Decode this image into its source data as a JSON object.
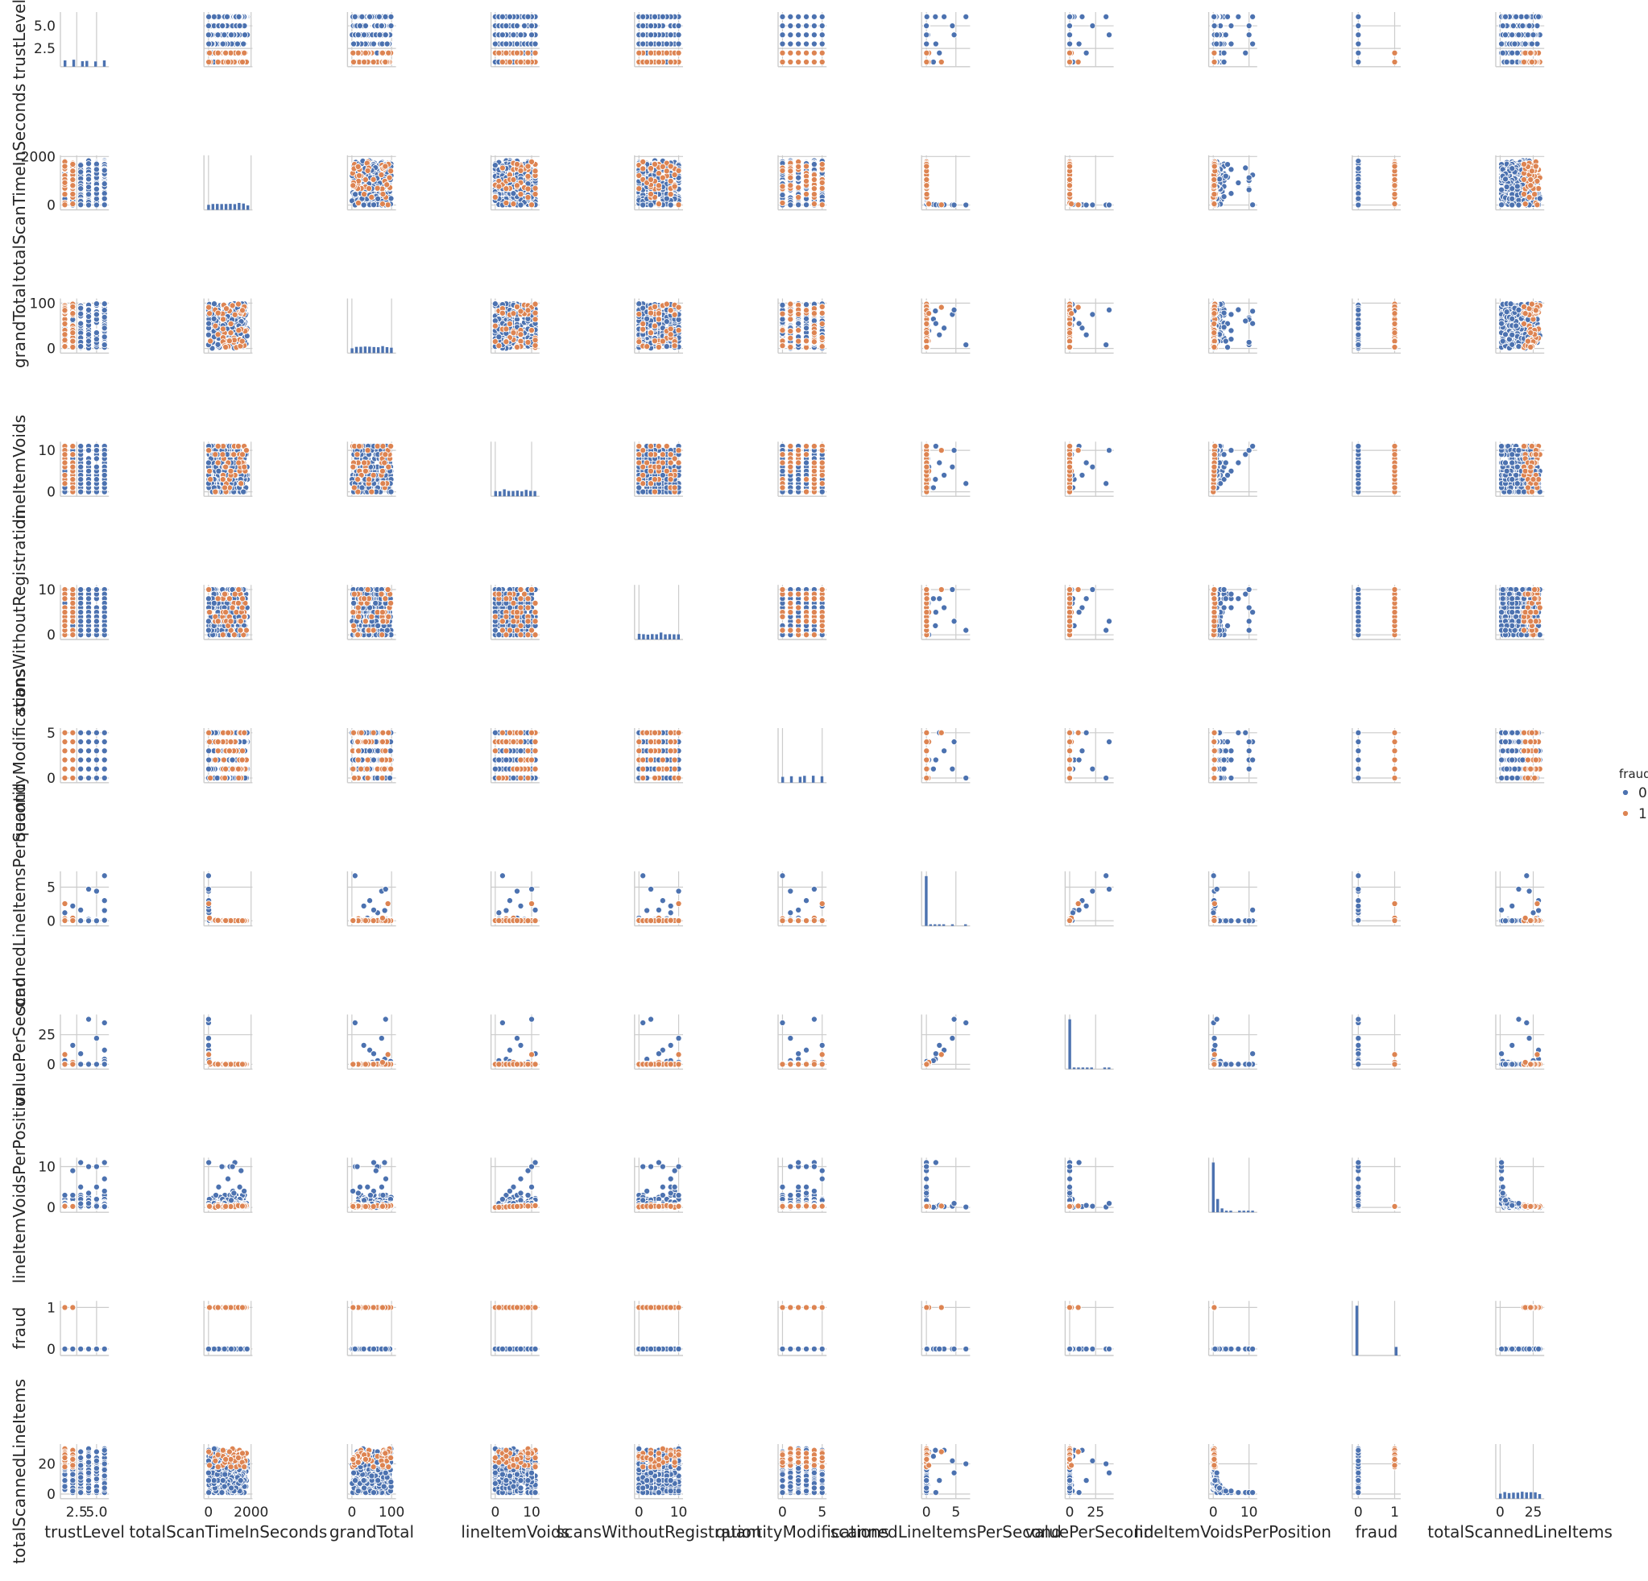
{
  "chart_data": {
    "type": "scatter",
    "subtype": "pairplot",
    "variables": [
      "trustLevel",
      "totalScanTimeInSeconds",
      "grandTotal",
      "lineItemVoids",
      "scansWithoutRegistration",
      "quantityModifications",
      "scannedLineItemsPerSecond",
      "valuePerSecond",
      "lineItemVoidsPerPosition",
      "fraud",
      "totalScannedLineItems"
    ],
    "ranges": {
      "trustLevel": [
        0.75,
        6.25
      ],
      "totalScanTimeInSeconds": [
        -100,
        1950
      ],
      "grandTotal": [
        -5,
        105
      ],
      "lineItemVoids": [
        -0.5,
        11.5
      ],
      "scansWithoutRegistration": [
        -0.5,
        10.5
      ],
      "quantityModifications": [
        -0.25,
        5.25
      ],
      "scannedLineItemsPerSecond": [
        -0.4,
        7
      ],
      "valuePerSecond": [
        -2,
        40
      ],
      "lineItemVoidsPerPosition": [
        -0.6,
        11.6
      ],
      "fraud": [
        -0.1,
        1.1
      ],
      "totalScannedLineItems": [
        -1.5,
        31.5
      ]
    },
    "ticks": {
      "trustLevel": [
        2.5,
        5.0
      ],
      "totalScanTimeInSeconds": [
        0,
        2000
      ],
      "grandTotal": [
        0,
        100
      ],
      "lineItemVoids": [
        0,
        10
      ],
      "scansWithoutRegistration": [
        0,
        10
      ],
      "quantityModifications": [
        0,
        5
      ],
      "scannedLineItemsPerSecond": [
        0,
        5
      ],
      "valuePerSecond": [
        0,
        25
      ],
      "lineItemVoidsPerPosition": [
        0,
        10
      ],
      "fraud": [
        0,
        1
      ],
      "totalScannedLineItems": [
        0,
        25
      ]
    },
    "y_ticks": {
      "trustLevel": [
        2.5,
        5.0
      ],
      "totalScanTimeInSeconds": [
        0,
        2000
      ],
      "grandTotal": [
        0,
        100
      ],
      "lineItemVoids": [
        0,
        10
      ],
      "scansWithoutRegistration": [
        0,
        10
      ],
      "quantityModifications": [
        0,
        5
      ],
      "scannedLineItemsPerSecond": [
        0,
        5
      ],
      "valuePerSecond": [
        0,
        25
      ],
      "lineItemVoidsPerPosition": [
        0,
        10
      ],
      "fraud": [
        0,
        1
      ],
      "totalScannedLineItems": [
        0,
        20
      ]
    },
    "diagonal": "histogram",
    "hue": "fraud",
    "legend": {
      "title": "fraud",
      "entries": [
        {
          "label": "0",
          "color": "#4c72b0"
        },
        {
          "label": "1",
          "color": "#dd8452"
        }
      ],
      "placement": "right"
    },
    "grid": true,
    "colors": {
      "class_0": "#4c72b0",
      "class_1": "#dd8452",
      "grid": "#cccccc"
    },
    "outliers": [
      {
        "trustLevel": 6,
        "totalScanTimeInSeconds": 3,
        "grandTotal": 8,
        "lineItemVoids": 2,
        "scansWithoutRegistration": 1,
        "quantityModifications": 0,
        "scannedLineItemsPerSecond": 6.7,
        "valuePerSecond": 35,
        "lineItemVoidsPerPosition": 0.1,
        "fraud": 0,
        "totalScannedLineItems": 20
      },
      {
        "trustLevel": 5,
        "totalScanTimeInSeconds": 5,
        "grandTotal": 75,
        "lineItemVoids": 6,
        "scansWithoutRegistration": 10,
        "quantityModifications": 1,
        "scannedLineItemsPerSecond": 4.4,
        "valuePerSecond": 22,
        "lineItemVoidsPerPosition": 0.3,
        "fraud": 0,
        "totalScannedLineItems": 22
      },
      {
        "trustLevel": 4,
        "totalScanTimeInSeconds": 2,
        "grandTotal": 85,
        "lineItemVoids": 10,
        "scansWithoutRegistration": 3,
        "quantityModifications": 4,
        "scannedLineItemsPerSecond": 4.7,
        "valuePerSecond": 38,
        "lineItemVoidsPerPosition": 1.0,
        "fraud": 0,
        "totalScannedLineItems": 14
      },
      {
        "trustLevel": 6,
        "totalScanTimeInSeconds": 10,
        "grandTotal": 45,
        "lineItemVoids": 4,
        "scansWithoutRegistration": 6,
        "quantityModifications": 3,
        "scannedLineItemsPerSecond": 3.0,
        "valuePerSecond": 12,
        "lineItemVoidsPerPosition": 0.2,
        "fraud": 0,
        "totalScannedLineItems": 29
      },
      {
        "trustLevel": 3,
        "totalScanTimeInSeconds": 12,
        "grandTotal": 55,
        "lineItemVoids": 11,
        "scansWithoutRegistration": 5,
        "quantityModifications": 2,
        "scannedLineItemsPerSecond": 1.6,
        "valuePerSecond": 9,
        "lineItemVoidsPerPosition": 11,
        "fraud": 0,
        "totalScannedLineItems": 1
      },
      {
        "trustLevel": 2,
        "totalScanTimeInSeconds": 4,
        "grandTotal": 30,
        "lineItemVoids": 7,
        "scansWithoutRegistration": 8,
        "quantityModifications": 5,
        "scannedLineItemsPerSecond": 2.2,
        "valuePerSecond": 16,
        "lineItemVoidsPerPosition": 0.5,
        "fraud": 0,
        "totalScannedLineItems": 9
      }
    ]
  }
}
